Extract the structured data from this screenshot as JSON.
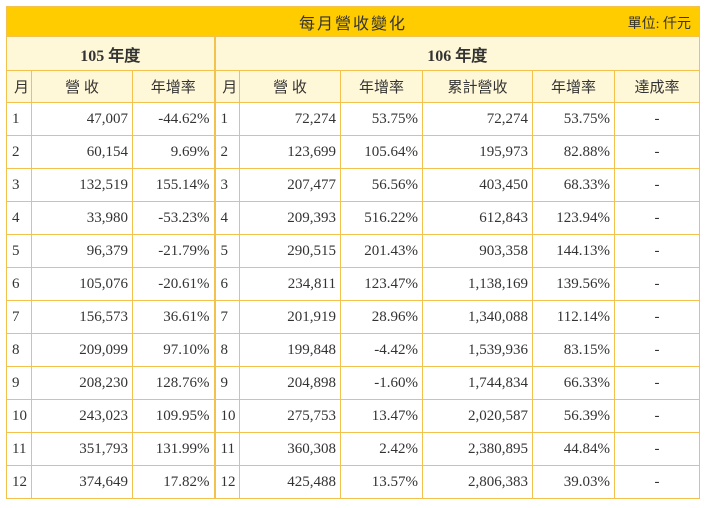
{
  "title": "每月營收變化",
  "unit": "單位: 仟元",
  "year_a": "105 年度",
  "year_b": "106 年度",
  "headers_a": [
    "月",
    "營 收",
    "年增率"
  ],
  "headers_b": [
    "月",
    "營 收",
    "年增率",
    "累計營收",
    "年增率",
    "達成率"
  ],
  "rows": [
    [
      "1",
      "47,007",
      "-44.62%",
      "1",
      "72,274",
      "53.75%",
      "72,274",
      "53.75%",
      "-"
    ],
    [
      "2",
      "60,154",
      "9.69%",
      "2",
      "123,699",
      "105.64%",
      "195,973",
      "82.88%",
      "-"
    ],
    [
      "3",
      "132,519",
      "155.14%",
      "3",
      "207,477",
      "56.56%",
      "403,450",
      "68.33%",
      "-"
    ],
    [
      "4",
      "33,980",
      "-53.23%",
      "4",
      "209,393",
      "516.22%",
      "612,843",
      "123.94%",
      "-"
    ],
    [
      "5",
      "96,379",
      "-21.79%",
      "5",
      "290,515",
      "201.43%",
      "903,358",
      "144.13%",
      "-"
    ],
    [
      "6",
      "105,076",
      "-20.61%",
      "6",
      "234,811",
      "123.47%",
      "1,138,169",
      "139.56%",
      "-"
    ],
    [
      "7",
      "156,573",
      "36.61%",
      "7",
      "201,919",
      "28.96%",
      "1,340,088",
      "112.14%",
      "-"
    ],
    [
      "8",
      "209,099",
      "97.10%",
      "8",
      "199,848",
      "-4.42%",
      "1,539,936",
      "83.15%",
      "-"
    ],
    [
      "9",
      "208,230",
      "128.76%",
      "9",
      "204,898",
      "-1.60%",
      "1,744,834",
      "66.33%",
      "-"
    ],
    [
      "10",
      "243,023",
      "109.95%",
      "10",
      "275,753",
      "13.47%",
      "2,020,587",
      "56.39%",
      "-"
    ],
    [
      "11",
      "351,793",
      "131.99%",
      "11",
      "360,308",
      "2.42%",
      "2,380,895",
      "44.84%",
      "-"
    ],
    [
      "12",
      "374,649",
      "17.82%",
      "12",
      "425,488",
      "13.57%",
      "2,806,383",
      "39.03%",
      "-"
    ]
  ],
  "colors": {
    "title_bg": "#ffcc00",
    "header_bg": "#fff8d8",
    "border": "#f2c14e"
  }
}
